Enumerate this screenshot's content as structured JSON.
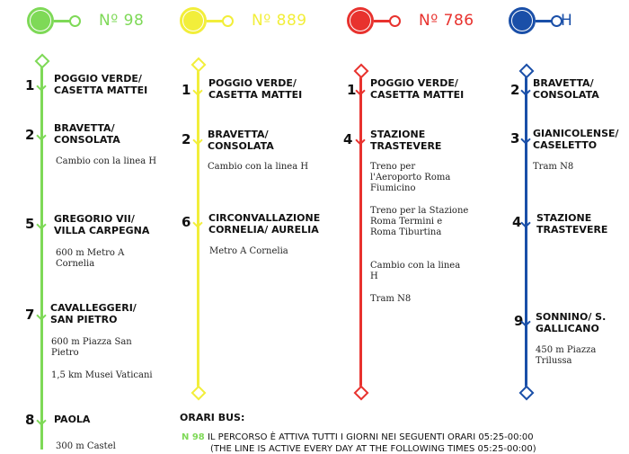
{
  "colors": {
    "green": "#7ed957",
    "yellow": "#f2ee3a",
    "red": "#e8322e",
    "blue": "#1a4fa8"
  },
  "lines": [
    {
      "name": "Nº 98",
      "color": "#7ed957",
      "stops": [
        {
          "num": "1",
          "name": "POGGIO VERDE/\nCASETTA MATTEI",
          "notes": []
        },
        {
          "num": "2",
          "name": "BRAVETTA/\nCONSOLATA",
          "notes": [
            "Cambio con la linea H"
          ]
        },
        {
          "num": "5",
          "name": "GREGORIO VII/\nVILLA CARPEGNA",
          "notes": [
            "600 m Metro A Cornelia"
          ]
        },
        {
          "num": "7",
          "name": "CAVALLEGGERI/\nSAN PIETRO",
          "notes": [
            "600 m Piazza San Pietro",
            "1,5 km Musei Vaticani"
          ]
        },
        {
          "num": "8",
          "name": "PAOLA",
          "notes": [
            "300 m Castel"
          ]
        }
      ]
    },
    {
      "name": "Nº 889",
      "color": "#f2ee3a",
      "stops": [
        {
          "num": "1",
          "name": "POGGIO VERDE/\nCASETTA MATTEI",
          "notes": []
        },
        {
          "num": "2",
          "name": "BRAVETTA/\nCONSOLATA",
          "notes": [
            "Cambio con la linea H"
          ]
        },
        {
          "num": "6",
          "name": "CIRCONVALLAZIONE\nCORNELIA/ AURELIA",
          "notes": [
            "Metro A Cornelia"
          ]
        }
      ]
    },
    {
      "name": "Nº 786",
      "color": "#e8322e",
      "stops": [
        {
          "num": "1",
          "name": "POGGIO VERDE/\nCASETTA MATTEI",
          "notes": []
        },
        {
          "num": "4",
          "name": "STAZIONE\nTRASTEVERE",
          "notes": [
            "Treno per l'Aeroporto Roma Fiumicino",
            "Treno per la Stazione Roma Termini e Roma Tiburtina",
            "Cambio con la linea H",
            "Tram N8"
          ]
        }
      ]
    },
    {
      "name": "H",
      "color": "#1a4fa8",
      "stops": [
        {
          "num": "2",
          "name": "BRAVETTA/\nCONSOLATA",
          "notes": []
        },
        {
          "num": "3",
          "name": "GIANICOLENSE/\nCASELETTO",
          "notes": [
            "Tram N8"
          ]
        },
        {
          "num": "4",
          "name": "STAZIONE\nTRASTEVERE",
          "notes": []
        },
        {
          "num": "9",
          "name": "SONNINO/ S.\nGALLICANO",
          "notes": [
            "450 m Piazza Trilussa"
          ]
        }
      ]
    }
  ],
  "orari": {
    "title": "ORARI BUS:",
    "line1_tag": "N 98",
    "line1_text": "IL PERCORSO È ATTIVA TUTTI I GIORNI NEI SEGUENTI ORARI 05:25-00:00",
    "line2_text": "(THE LINE IS ACTIVE EVERY DAY AT THE FOLLOWING TIMES 05:25-00:00)"
  }
}
